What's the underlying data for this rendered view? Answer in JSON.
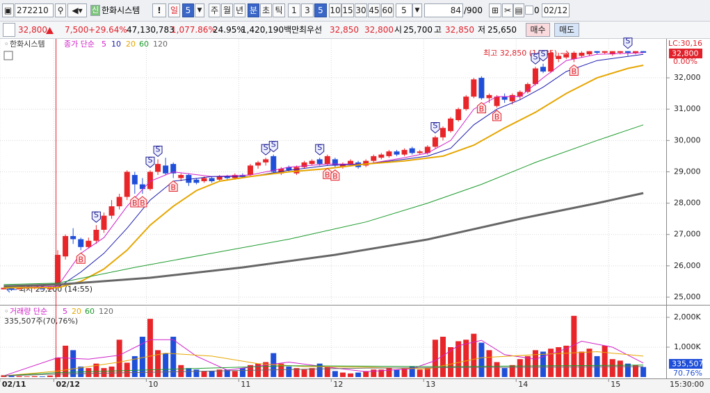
{
  "toolbar": {
    "code": "272210",
    "badge": "신",
    "name": "한화시스템",
    "alert": "!",
    "day": "일",
    "day_count": "5",
    "units": [
      "주",
      "월",
      "년",
      "분",
      "초",
      "틱"
    ],
    "minutes": [
      "1",
      "3",
      "5",
      "10",
      "15",
      "30",
      "45",
      "60"
    ],
    "interval": "5",
    "count": "84",
    "max": "/900",
    "check_label": "0",
    "date": "02/12"
  },
  "quote": {
    "price": "32,800",
    "change": "7,500",
    "rate": "+29.64%",
    "volume": "47,130,783",
    "volume_ratio": "1,077.86%",
    "turnover": "24.95%",
    "amount": "1,420,190백만",
    "best_label": "최우선",
    "ask": "32,850",
    "bid": "32,800",
    "open_label": "시",
    "open": "25,700",
    "high_label": "고",
    "high": "32,850",
    "low_label": "저",
    "low": "25,650",
    "buy": "매수",
    "sell": "매도"
  },
  "chart_data": {
    "type": "candlestick",
    "title": "한화시스템",
    "ma_label": "종가 단순",
    "volume_title": "거래량 단순",
    "volume_info": "335,507주(70,76%)",
    "up_color": "#e8262a",
    "down_color": "#1f4fd8",
    "grid": true,
    "x": [
      -7,
      -6,
      -5,
      -4,
      -3,
      -2,
      -1,
      0,
      1,
      2,
      3,
      4,
      5,
      6,
      7,
      8,
      9,
      10,
      11,
      12,
      13,
      14,
      15,
      16,
      17,
      18,
      19,
      20,
      21,
      22,
      23,
      24,
      25,
      26,
      27,
      28,
      29,
      30,
      31,
      32,
      33,
      34,
      35,
      36,
      37,
      38,
      39,
      40,
      41,
      42,
      43,
      44,
      45,
      46,
      47,
      48,
      49,
      50,
      51,
      52,
      53,
      54,
      55,
      56,
      57,
      58,
      59,
      60,
      61,
      62,
      63,
      64,
      65,
      66,
      67,
      68,
      69,
      70,
      71,
      72,
      73,
      74,
      75,
      76
    ],
    "open": [
      25250,
      25300,
      25250,
      25300,
      25300,
      25300,
      25250,
      25350,
      26300,
      26950,
      26850,
      26600,
      26800,
      27150,
      27600,
      27900,
      28200,
      28900,
      28600,
      28450,
      29000,
      29200,
      29250,
      28800,
      28900,
      28750,
      28700,
      28800,
      28750,
      28850,
      28800,
      28900,
      28900,
      29200,
      29300,
      29500,
      28950,
      29150,
      28950,
      29150,
      29250,
      29400,
      29250,
      29400,
      29150,
      29250,
      29300,
      29200,
      29350,
      29450,
      29500,
      29650,
      29550,
      29750,
      29600,
      29600,
      29800,
      30100,
      30300,
      30650,
      31000,
      31400,
      32000,
      31350,
      31100,
      31400,
      31250,
      31400,
      31550,
      31800,
      32350,
      32200,
      32600,
      32650,
      32600,
      32700,
      32750,
      32850,
      32800,
      32750,
      32800,
      32850,
      32800,
      32850
    ],
    "high": [
      25300,
      25300,
      25300,
      25300,
      25350,
      25300,
      25300,
      26500,
      27000,
      27200,
      26900,
      26900,
      27300,
      27700,
      28100,
      28300,
      29050,
      29000,
      28800,
      29050,
      29400,
      29450,
      29300,
      28950,
      28950,
      28800,
      28850,
      28850,
      28900,
      28900,
      28950,
      28950,
      29250,
      29350,
      29450,
      29550,
      29150,
      29200,
      29200,
      29350,
      29400,
      29450,
      29550,
      29450,
      29300,
      29400,
      29350,
      29400,
      29550,
      29600,
      29700,
      29700,
      29750,
      29800,
      29700,
      29850,
      30150,
      30450,
      30750,
      31050,
      31450,
      32000,
      32050,
      31500,
      31450,
      31500,
      31500,
      31600,
      31850,
      32350,
      32450,
      32850,
      32800,
      32800,
      32850,
      32850,
      32850,
      32850,
      32850,
      32850,
      32850,
      32850,
      32850,
      32850
    ],
    "low": [
      25250,
      25200,
      25250,
      25250,
      25250,
      25250,
      25250,
      25300,
      26200,
      26700,
      26500,
      26550,
      26700,
      27050,
      27500,
      27800,
      28100,
      28300,
      28300,
      28400,
      28900,
      28900,
      28800,
      28700,
      28550,
      28600,
      28650,
      28650,
      28700,
      28750,
      28750,
      28800,
      28850,
      29100,
      29200,
      28950,
      28900,
      29000,
      28900,
      29100,
      29200,
      29200,
      29200,
      29150,
      29100,
      29200,
      29100,
      29150,
      29300,
      29400,
      29450,
      29500,
      29500,
      29550,
      29550,
      29550,
      29750,
      30000,
      30250,
      30600,
      30950,
      31350,
      31300,
      31200,
      31050,
      31200,
      31150,
      31300,
      31500,
      31750,
      32150,
      32150,
      32500,
      32600,
      32500,
      32650,
      32700,
      32750,
      32750,
      32700,
      32750,
      32700,
      32750,
      32800
    ],
    "close": [
      25300,
      25250,
      25300,
      25300,
      25300,
      25250,
      25300,
      26350,
      26950,
      26850,
      26600,
      26800,
      27150,
      27600,
      27900,
      28200,
      29000,
      28600,
      28450,
      29000,
      29250,
      28950,
      28950,
      28900,
      28650,
      28650,
      28800,
      28700,
      28850,
      28800,
      28900,
      28850,
      29200,
      29300,
      29400,
      29000,
      29100,
      29050,
      29150,
      29300,
      29350,
      29250,
      29500,
      29200,
      29250,
      29350,
      29150,
      29350,
      29500,
      29550,
      29650,
      29550,
      29700,
      29600,
      29650,
      29800,
      30100,
      30400,
      30700,
      31000,
      31400,
      31950,
      31350,
      31450,
      31400,
      31300,
      31450,
      31550,
      31800,
      32300,
      32200,
      32800,
      32700,
      32750,
      32800,
      32800,
      32850,
      32800,
      32850,
      32850,
      32850,
      32800,
      32850,
      32800
    ],
    "volume": [
      60000,
      40000,
      30000,
      20000,
      30000,
      20000,
      50000,
      650000,
      1050000,
      900000,
      350000,
      300000,
      450000,
      300000,
      350000,
      1250000,
      480000,
      700000,
      1350000,
      1950000,
      900000,
      800000,
      1350000,
      400000,
      300000,
      250000,
      200000,
      200000,
      250000,
      250000,
      200000,
      300000,
      400000,
      450000,
      500000,
      800000,
      450000,
      350000,
      300000,
      250000,
      300000,
      450000,
      350000,
      200000,
      150000,
      120000,
      150000,
      200000,
      250000,
      250000,
      300000,
      250000,
      300000,
      350000,
      250000,
      300000,
      1250000,
      1350000,
      1000000,
      1200000,
      1250000,
      1450000,
      1150000,
      900000,
      500000,
      300000,
      400000,
      600000,
      700000,
      900000,
      850000,
      950000,
      1000000,
      1050000,
      2050000,
      850000,
      950000,
      700000,
      1050000,
      600000,
      550000,
      450000,
      400000,
      335507
    ],
    "ma_series": [
      {
        "name": 5,
        "color": "#d020c8",
        "width": 1,
        "x": [
          -7,
          0,
          3,
          6,
          9,
          12,
          15,
          20,
          25,
          30,
          35,
          40,
          45,
          48,
          51,
          54,
          57,
          60,
          63,
          66,
          70,
          76
        ],
        "values": [
          25300,
          25350,
          26400,
          26900,
          27900,
          28700,
          29000,
          28850,
          28900,
          29150,
          29250,
          29250,
          29450,
          29600,
          30000,
          31000,
          31400,
          31400,
          32000,
          32550,
          32750,
          32800
        ]
      },
      {
        "name": 10,
        "color": "#1a1ab0",
        "width": 1,
        "x": [
          -7,
          0,
          3,
          6,
          9,
          12,
          15,
          20,
          25,
          30,
          35,
          40,
          45,
          48,
          51,
          54,
          57,
          60,
          63,
          66,
          70,
          76
        ],
        "values": [
          25300,
          25300,
          25800,
          26400,
          27200,
          28100,
          28700,
          28850,
          28850,
          29050,
          29200,
          29250,
          29400,
          29500,
          29750,
          30500,
          31000,
          31300,
          31700,
          32200,
          32550,
          32750
        ]
      },
      {
        "name": 20,
        "color": "#e6a600",
        "width": 2,
        "x": [
          -7,
          0,
          3,
          6,
          9,
          12,
          15,
          18,
          21,
          25,
          30,
          35,
          40,
          45,
          50,
          54,
          58,
          62,
          66,
          70,
          74,
          76
        ],
        "values": [
          25300,
          25300,
          25500,
          25900,
          26500,
          27300,
          27900,
          28400,
          28700,
          28850,
          29000,
          29100,
          29250,
          29350,
          29500,
          29850,
          30400,
          30900,
          31500,
          32000,
          32300,
          32400
        ]
      },
      {
        "name": 60,
        "color": "#1a9a2a",
        "width": 1,
        "x": [
          -7,
          0,
          10,
          20,
          30,
          40,
          48,
          55,
          62,
          70,
          76
        ],
        "values": [
          25400,
          25450,
          25950,
          26400,
          26850,
          27400,
          28000,
          28600,
          29300,
          30000,
          30500
        ]
      },
      {
        "name": 120,
        "color": "#666666",
        "width": 3,
        "x": [
          -7,
          0,
          12,
          24,
          36,
          48,
          60,
          70,
          76
        ],
        "values": [
          25350,
          25400,
          25620,
          25950,
          26350,
          26840,
          27500,
          28000,
          28320
        ]
      }
    ],
    "volume_ma_series": [
      {
        "name": 5,
        "color": "#d020c8",
        "width": 1,
        "x": [
          -7,
          0,
          4,
          8,
          12,
          15,
          18,
          22,
          27,
          30,
          35,
          40,
          46,
          49,
          52,
          55,
          58,
          62,
          66,
          68,
          72,
          76
        ],
        "values": [
          40000,
          650000,
          600000,
          730000,
          1250000,
          1250000,
          700000,
          230000,
          400000,
          500000,
          330000,
          180000,
          280000,
          550000,
          1050000,
          1230000,
          750000,
          600000,
          950000,
          1200000,
          1000000,
          470000
        ]
      },
      {
        "name": 20,
        "color": "#e6a600",
        "width": 1,
        "x": [
          -7,
          0,
          8,
          14,
          20,
          26,
          32,
          40,
          48,
          55,
          62,
          70,
          76
        ],
        "values": [
          40000,
          200000,
          500000,
          800000,
          700000,
          450000,
          350000,
          330000,
          270000,
          650000,
          750000,
          850000,
          700000
        ]
      },
      {
        "name": 60,
        "color": "#1a9a2a",
        "width": 1,
        "x": [
          -7,
          0,
          30,
          50,
          76
        ],
        "values": [
          40000,
          150000,
          380000,
          350000,
          400000
        ]
      },
      {
        "name": 120,
        "color": "#666666",
        "width": 1,
        "x": [
          -7,
          0,
          40,
          76
        ],
        "values": [
          40000,
          100000,
          300000,
          350000
        ]
      }
    ],
    "signals": [
      {
        "x": 3,
        "label": "B"
      },
      {
        "x": 5,
        "label": "S"
      },
      {
        "x": 10,
        "label": "B"
      },
      {
        "x": 11,
        "label": "B"
      },
      {
        "x": 12,
        "label": "S"
      },
      {
        "x": 13,
        "label": "S"
      },
      {
        "x": 15,
        "label": "B"
      },
      {
        "x": 27,
        "label": "S"
      },
      {
        "x": 28,
        "label": "S"
      },
      {
        "x": 34,
        "label": "S"
      },
      {
        "x": 35,
        "label": "B"
      },
      {
        "x": 36,
        "label": "B"
      },
      {
        "x": 49,
        "label": "S"
      },
      {
        "x": 55,
        "label": "B"
      },
      {
        "x": 57,
        "label": "B"
      },
      {
        "x": 62,
        "label": "S"
      },
      {
        "x": 63,
        "label": "S"
      },
      {
        "x": 67,
        "label": "B"
      },
      {
        "x": 74,
        "label": "S"
      }
    ],
    "high_note": "최고 32,850 (14:35)",
    "low_note": "최저 25,200 (14:55)",
    "ylim": [
      24800,
      33220
    ],
    "yticks": [
      {
        "value": 25000,
        "label": "25,000"
      },
      {
        "value": 26000,
        "label": "26,000"
      },
      {
        "value": 27000,
        "label": "27,000"
      },
      {
        "value": 28000,
        "label": "28,000"
      },
      {
        "value": 29000,
        "label": "29,000"
      },
      {
        "value": 30000,
        "label": "30,000"
      },
      {
        "value": 31000,
        "label": "31,000"
      },
      {
        "value": 32000,
        "label": "32,000"
      }
    ],
    "lc_label": "LC:30,16",
    "price_box": "32,800",
    "price_rate": "0.00%",
    "volume_ylim": [
      0,
      2326000
    ],
    "volume_yticks": [
      {
        "value": 1000000,
        "label": "1,000K"
      },
      {
        "value": 2000000,
        "label": "2,000K"
      }
    ],
    "volume_box": "335,507",
    "volume_rate": "70.76%",
    "xticks": [
      {
        "value": -7.5,
        "label": "02/11"
      },
      {
        "value": -0.5,
        "label": "02/12"
      },
      {
        "value": 11.5,
        "label": "10"
      },
      {
        "value": 23.5,
        "label": "11"
      },
      {
        "value": 35.5,
        "label": "12"
      },
      {
        "value": 47.5,
        "label": "13"
      },
      {
        "value": 59.5,
        "label": "14"
      },
      {
        "value": 71.5,
        "label": "15"
      }
    ],
    "time_label": "15:30:00"
  }
}
